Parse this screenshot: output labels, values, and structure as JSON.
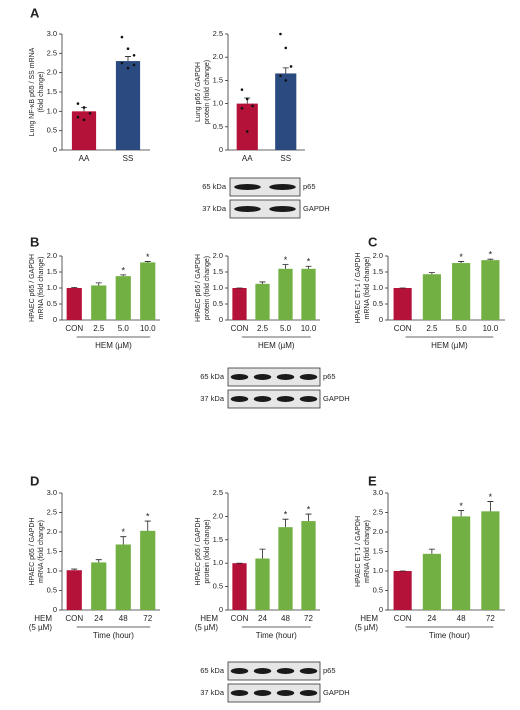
{
  "panels": [
    "A",
    "B",
    "C",
    "D",
    "E"
  ],
  "blots": [
    {
      "sizes": [
        "65 kDa",
        "37 kDa"
      ],
      "names": [
        "p65",
        "GAPDH"
      ]
    },
    {
      "sizes": [
        "65 kDa",
        "37 kDa"
      ],
      "names": [
        "p65",
        "GAPDH"
      ]
    },
    {
      "sizes": [
        "65 kDa",
        "37 kDa"
      ],
      "names": [
        "p65",
        "GAPDH"
      ]
    }
  ],
  "chart_data": [
    {
      "type": "bar",
      "ylabel": [
        "Lung NF-κB p65 / SS mRNA",
        "(fold change)"
      ],
      "categories": [
        "AA",
        "SS"
      ],
      "values": [
        1.0,
        2.3
      ],
      "errors": [
        0.1,
        0.12
      ],
      "colors": [
        "#b5123a",
        "#2b4a80"
      ],
      "points": [
        [
          1.2,
          1.1,
          0.95,
          0.85,
          0.78
        ],
        [
          2.92,
          2.62,
          2.45,
          2.25,
          2.12,
          2.2
        ]
      ],
      "ylim": [
        0,
        3
      ],
      "yticks": [
        0,
        0.5,
        {
          "value": 1,
          "label": "1.0"
        },
        1.5,
        {
          "value": 2,
          "label": "2.0"
        },
        2.5,
        {
          "value": 3,
          "label": "3.0"
        }
      ]
    },
    {
      "type": "bar",
      "ylabel": [
        "Lung p65 / GAPDH",
        "protein (fold change)"
      ],
      "categories": [
        "AA",
        "SS"
      ],
      "values": [
        1.0,
        1.65
      ],
      "errors": [
        0.12,
        0.12
      ],
      "colors": [
        "#b5123a",
        "#2b4a80"
      ],
      "points": [
        [
          1.3,
          1.1,
          0.95,
          0.9,
          0.4
        ],
        [
          2.5,
          2.2,
          1.8,
          1.6,
          1.5
        ]
      ],
      "ylim": [
        0,
        2.5
      ],
      "yticks": [
        0,
        0.5,
        {
          "value": 1,
          "label": "1.0"
        },
        1.5,
        {
          "value": 2,
          "label": "2.0"
        },
        2.5
      ]
    },
    {
      "type": "bar",
      "ylabel": [
        "HPAEC p65 / GAPDH",
        "mRNA (fold change)"
      ],
      "categories": [
        "CON",
        "2.5",
        "5.0",
        "10.0"
      ],
      "values": [
        1.0,
        1.08,
        1.37,
        1.8
      ],
      "errors": [
        0.02,
        0.08,
        0.04,
        0.03
      ],
      "stars": [
        null,
        null,
        "*",
        "*"
      ],
      "xlabel": "HEM (µM)",
      "colors": [
        "#b5123a",
        "#72b043",
        "#72b043",
        "#72b043"
      ],
      "ylim": [
        0,
        2
      ],
      "yticks": [
        0,
        0.5,
        {
          "value": 1,
          "label": "1.0"
        },
        1.5,
        {
          "value": 2,
          "label": "2.0"
        }
      ]
    },
    {
      "type": "bar",
      "ylabel": [
        "HPAEC p65 / GAPDH",
        "protein (fold change)"
      ],
      "categories": [
        "CON",
        "2.5",
        "5.0",
        "10.0"
      ],
      "values": [
        1.0,
        1.13,
        1.6,
        1.6
      ],
      "errors": [
        0,
        0.06,
        0.13,
        0.08
      ],
      "stars": [
        null,
        null,
        "*",
        "*"
      ],
      "xlabel": "HEM (µM)",
      "colors": [
        "#b5123a",
        "#72b043",
        "#72b043",
        "#72b043"
      ],
      "ylim": [
        0,
        2
      ],
      "yticks": [
        0,
        0.5,
        {
          "value": 1,
          "label": "1.0"
        },
        1.5,
        {
          "value": 2,
          "label": "2.0"
        }
      ]
    },
    {
      "type": "bar",
      "ylabel": [
        "HPAEC  ET-1 / GAPDH",
        "mRNA (fold change)"
      ],
      "categories": [
        "CON",
        "2.5",
        "5.0",
        "10.0"
      ],
      "values": [
        1.0,
        1.43,
        1.78,
        1.87
      ],
      "errors": [
        0,
        0.05,
        0.05,
        0.03
      ],
      "stars": [
        null,
        null,
        "*",
        "*"
      ],
      "xlabel": "HEM (µM)",
      "colors": [
        "#b5123a",
        "#72b043",
        "#72b043",
        "#72b043"
      ],
      "ylim": [
        0,
        2
      ],
      "yticks": [
        0,
        0.5,
        {
          "value": 1,
          "label": "1.0"
        },
        1.5,
        {
          "value": 2,
          "label": "2.0"
        }
      ]
    },
    {
      "type": "bar",
      "ylabel": [
        "HPAEC p65 / GAPDH",
        "mRNA (fold change)"
      ],
      "categories": [
        "CON",
        "24",
        "48",
        "72"
      ],
      "values": [
        1.02,
        1.22,
        1.68,
        2.03
      ],
      "errors": [
        0.03,
        0.07,
        0.2,
        0.25
      ],
      "stars": [
        null,
        null,
        "*",
        "*"
      ],
      "xlabel": "Time (hour)",
      "row_label": [
        "HEM",
        "(5 µM)"
      ],
      "colors": [
        "#b5123a",
        "#72b043",
        "#72b043",
        "#72b043"
      ],
      "ylim": [
        0,
        3
      ],
      "yticks": [
        0,
        0.5,
        {
          "value": 1,
          "label": "1.0"
        },
        1.5,
        {
          "value": 2,
          "label": "2.0"
        },
        2.5,
        {
          "value": 3,
          "label": "3.0"
        }
      ]
    },
    {
      "type": "bar",
      "ylabel": [
        "HPAEC p65 / GAPDH",
        "protein (fold change)"
      ],
      "categories": [
        "CON",
        "24",
        "48",
        "72"
      ],
      "values": [
        1.0,
        1.1,
        1.77,
        1.9
      ],
      "errors": [
        0,
        0.2,
        0.17,
        0.15
      ],
      "stars": [
        null,
        null,
        "*",
        "*"
      ],
      "xlabel": "Time (hour)",
      "row_label": [
        "HEM",
        "(5 µM)"
      ],
      "colors": [
        "#b5123a",
        "#72b043",
        "#72b043",
        "#72b043"
      ],
      "ylim": [
        0,
        2.5
      ],
      "yticks": [
        0,
        0.5,
        {
          "value": 1,
          "label": "1.0"
        },
        1.5,
        {
          "value": 2,
          "label": "2.0"
        },
        2.5
      ]
    },
    {
      "type": "bar",
      "ylabel": [
        "HPAEC  ET-1 / GAPDH",
        "mRNA (fold change)"
      ],
      "categories": [
        "CON",
        "24",
        "48",
        "72"
      ],
      "values": [
        1.0,
        1.44,
        2.4,
        2.53
      ],
      "errors": [
        0,
        0.12,
        0.15,
        0.25
      ],
      "stars": [
        null,
        null,
        "*",
        "*"
      ],
      "xlabel": "Time (hour)",
      "row_label": [
        "HEM",
        "(5 µM)"
      ],
      "colors": [
        "#b5123a",
        "#72b043",
        "#72b043",
        "#72b043"
      ],
      "ylim": [
        0,
        3
      ],
      "yticks": [
        0,
        0.5,
        {
          "value": 1,
          "label": "1.0"
        },
        1.5,
        {
          "value": 2,
          "label": "2.0"
        },
        2.5,
        {
          "value": 3,
          "label": "3.0"
        }
      ]
    }
  ]
}
